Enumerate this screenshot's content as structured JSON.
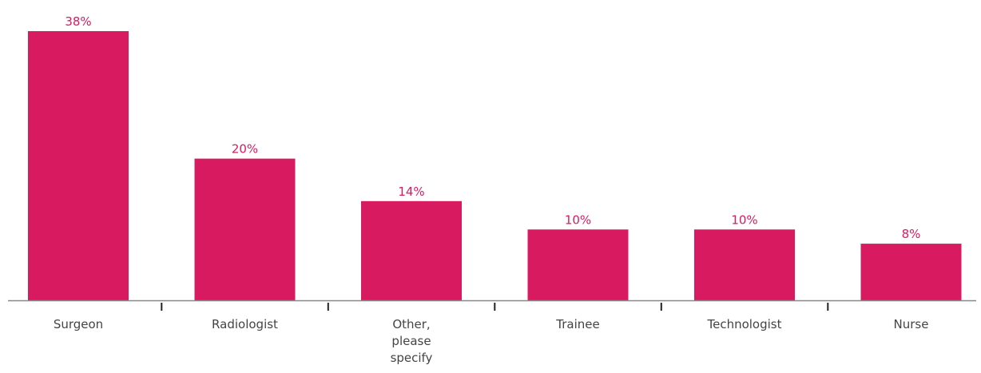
{
  "colors": {
    "bar": "#d81b60",
    "value_label": "#d81b60",
    "axis": "#888888",
    "tick": "#222222",
    "category_label": "#444444"
  },
  "chart_data": {
    "type": "bar",
    "categories": [
      "Surgeon",
      "Radiologist",
      "Other, please specify",
      "Trainee",
      "Technologist",
      "Nurse"
    ],
    "category_label_lines": [
      [
        "Surgeon"
      ],
      [
        "Radiologist"
      ],
      [
        "Other,",
        "please",
        "specify"
      ],
      [
        "Trainee"
      ],
      [
        "Technologist"
      ],
      [
        "Nurse"
      ]
    ],
    "values": [
      38,
      20,
      14,
      10,
      10,
      8
    ],
    "value_labels": [
      "38%",
      "20%",
      "14%",
      "10%",
      "10%",
      "8%"
    ],
    "unit": "%",
    "ylim": [
      0,
      38
    ],
    "grid": false,
    "legend": "none"
  }
}
